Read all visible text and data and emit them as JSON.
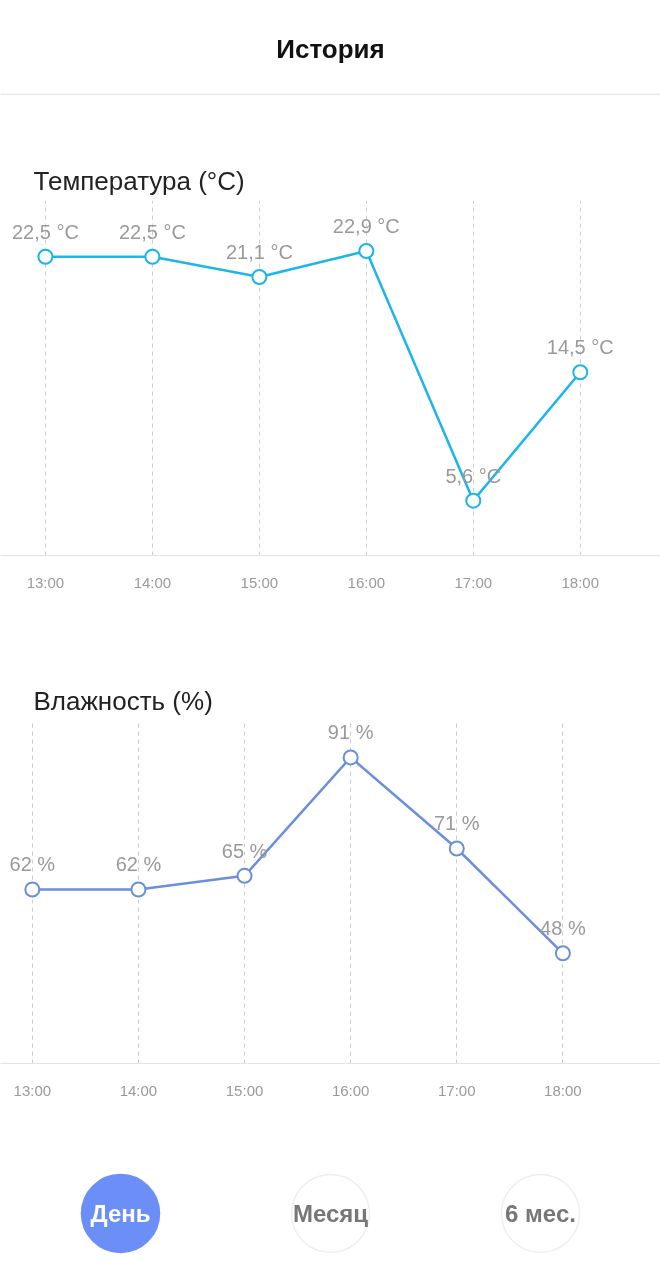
{
  "chart_data": [
    {
      "type": "line",
      "title": "Температура (°C)",
      "annotations": [
        "История"
      ],
      "x": [
        13,
        14,
        15,
        16,
        17,
        18
      ],
      "xlim": [
        12.58,
        18.75
      ],
      "xticks": [
        {
          "value": 13,
          "label": "13:00"
        },
        {
          "value": 14,
          "label": "14:00"
        },
        {
          "value": 15,
          "label": "15:00"
        },
        {
          "value": 16,
          "label": "16:00"
        },
        {
          "value": 17,
          "label": "17:00"
        },
        {
          "value": 18,
          "label": "18:00"
        }
      ],
      "ylim": [
        1.8,
        26.4
      ],
      "tick_labels": "x",
      "grid": "x",
      "marker": "circle",
      "line_style": "solid",
      "series": [
        {
          "color": "#1cb5e8",
          "values": [
            22.5,
            22.5,
            21.1,
            22.9,
            5.6,
            14.5
          ],
          "value_labels": [
            "22,5 °C",
            "22,5 °C",
            "21,1 °C",
            "22,9 °C",
            "5,6 °C",
            "14,5 °C"
          ]
        }
      ]
    },
    {
      "type": "line",
      "title": "Влажность (%)",
      "annotations": [
        "День",
        "Месяц",
        "6 мес."
      ],
      "x": [
        13,
        14,
        15,
        16,
        17,
        18
      ],
      "xlim": [
        12.7,
        18.92
      ],
      "xticks": [
        {
          "value": 13,
          "label": "13:00"
        },
        {
          "value": 14,
          "label": "14:00"
        },
        {
          "value": 15,
          "label": "15:00"
        },
        {
          "value": 16,
          "label": "16:00"
        },
        {
          "value": 17,
          "label": "17:00"
        },
        {
          "value": 18,
          "label": "18:00"
        }
      ],
      "ylim": [
        23.8,
        99.1
      ],
      "tick_labels": "x",
      "grid": "x",
      "marker": "circle",
      "line_style": "solid",
      "series": [
        {
          "color": "#6a8fdc",
          "values": [
            62,
            62,
            65,
            91,
            71,
            48
          ],
          "value_labels": [
            "62 %",
            "62 %",
            "65 %",
            "91 %",
            "71 %",
            "48 %"
          ]
        }
      ]
    }
  ]
}
